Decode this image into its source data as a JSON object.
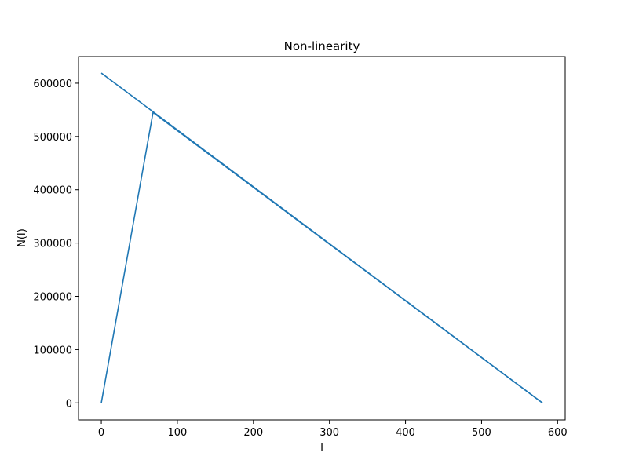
{
  "chart_data": {
    "type": "line",
    "title": "Non-linearity",
    "xlabel": "I",
    "ylabel": "N(I)",
    "xlim": [
      -30,
      610
    ],
    "ylim": [
      -32000,
      650000
    ],
    "x_ticks": [
      0,
      100,
      200,
      300,
      400,
      500,
      600
    ],
    "y_ticks": [
      0,
      100000,
      200000,
      300000,
      400000,
      500000,
      600000
    ],
    "x_tick_labels": [
      "0",
      "100",
      "200",
      "300",
      "400",
      "500",
      "600"
    ],
    "y_tick_labels": [
      "0",
      "100000",
      "200000",
      "300000",
      "400000",
      "500000",
      "600000"
    ],
    "grid": false,
    "series": [
      {
        "color": "#1f77b4",
        "x": [
          0,
          68,
          580
        ],
        "y": [
          0,
          545000,
          0
        ]
      },
      {
        "color": "#1f77b4",
        "x": [
          0,
          580
        ],
        "y": [
          619000,
          0
        ]
      }
    ]
  }
}
